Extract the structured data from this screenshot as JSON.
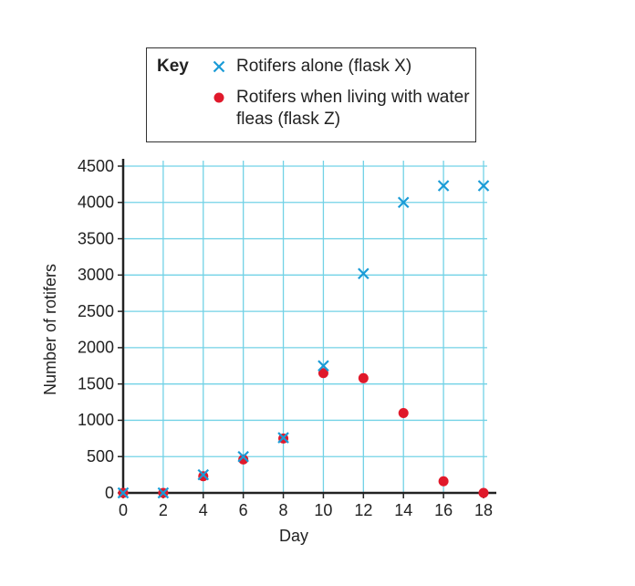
{
  "chart_data": {
    "type": "scatter",
    "x_label": "Day",
    "y_label": "Number of rotifers",
    "legend_title": "Key",
    "x": [
      0,
      2,
      4,
      6,
      8,
      10,
      12,
      14,
      16,
      18
    ],
    "series": [
      {
        "name": "Rotifers alone (flask X)",
        "color": "#1a9bd7",
        "marker": "x",
        "values": [
          0,
          0,
          250,
          500,
          760,
          1750,
          3020,
          4000,
          4230,
          4230
        ]
      },
      {
        "name": "Rotifers when living with water fleas (flask Z)",
        "color": "#e0192b",
        "marker": "circle",
        "values": [
          0,
          0,
          230,
          460,
          750,
          1650,
          1580,
          1100,
          160,
          0
        ]
      }
    ],
    "xlim": [
      0,
      18
    ],
    "xticks": [
      0,
      2,
      4,
      6,
      8,
      10,
      12,
      14,
      16,
      18
    ],
    "ylim": [
      0,
      4500
    ],
    "yticks": [
      0,
      500,
      1000,
      1500,
      2000,
      2500,
      3000,
      3500,
      4000,
      4500
    ],
    "grid": true,
    "grid_color": "#72d2e6"
  }
}
